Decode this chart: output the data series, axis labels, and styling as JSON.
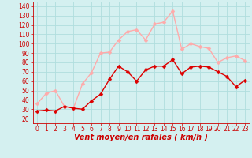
{
  "x": [
    0,
    1,
    2,
    3,
    4,
    5,
    6,
    7,
    8,
    9,
    10,
    11,
    12,
    13,
    14,
    15,
    16,
    17,
    18,
    19,
    20,
    21,
    22,
    23
  ],
  "rafales": [
    36,
    47,
    50,
    33,
    31,
    57,
    69,
    90,
    91,
    104,
    113,
    115,
    104,
    121,
    123,
    135,
    94,
    100,
    97,
    95,
    80,
    85,
    87,
    82
  ],
  "moyen": [
    28,
    29,
    28,
    33,
    31,
    30,
    39,
    46,
    62,
    76,
    70,
    60,
    72,
    76,
    76,
    83,
    68,
    75,
    76,
    75,
    70,
    65,
    54,
    61
  ],
  "rafales_color": "#ffaaaa",
  "moyen_color": "#dd0000",
  "bg_color": "#d4f0f0",
  "grid_color": "#b0dede",
  "ylabel_ticks": [
    20,
    30,
    40,
    50,
    60,
    70,
    80,
    90,
    100,
    110,
    120,
    130,
    140
  ],
  "xlabel": "Vent moyen/en rafales ( km/h )",
  "ylim": [
    15,
    145
  ],
  "xlim": [
    -0.5,
    23.5
  ],
  "tick_color": "#cc0000",
  "xlabel_color": "#cc0000",
  "markersize": 2.5,
  "linewidth": 1.0,
  "tick_fontsize": 5.5,
  "xlabel_fontsize": 7.0
}
